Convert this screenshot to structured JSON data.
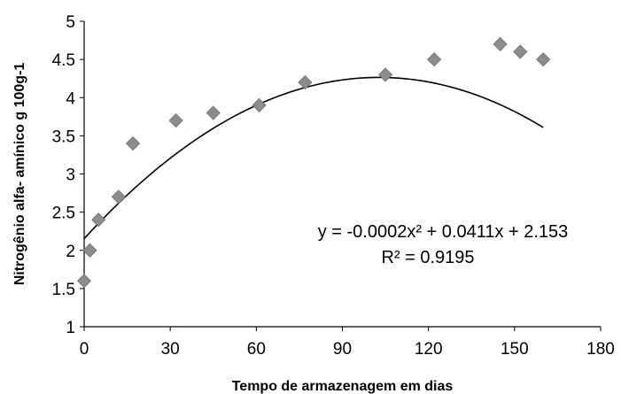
{
  "chart_data": {
    "type": "scatter",
    "title": "",
    "xlabel": "Tempo de armazenagem em dias",
    "ylabel": "Nitrogênio alfa- amínico g 100g-1",
    "xlim": [
      0,
      180
    ],
    "ylim": [
      1,
      5
    ],
    "xticks": [
      0,
      30,
      60,
      90,
      120,
      150,
      180
    ],
    "yticks": [
      1,
      1.5,
      2,
      2.5,
      3,
      3.5,
      4,
      4.5,
      5
    ],
    "xtick_labels": [
      "0",
      "30",
      "60",
      "90",
      "120",
      "150",
      "180"
    ],
    "ytick_labels": [
      "1",
      "1.5",
      "2",
      "2.5",
      "3",
      "3.5",
      "4",
      "4.5",
      "5"
    ],
    "grid": false,
    "legend": "none",
    "marker": "diamond",
    "marker_color": "#8c8c8c",
    "line_color": "#000000",
    "series": [
      {
        "x": [
          0,
          2,
          5,
          12,
          17,
          32,
          45,
          61,
          77,
          105,
          122,
          145,
          152,
          160
        ],
        "y": [
          1.6,
          2.0,
          2.4,
          2.7,
          3.4,
          3.7,
          3.8,
          3.9,
          4.2,
          4.3,
          4.5,
          4.7,
          4.6,
          4.5
        ]
      }
    ],
    "trendline": {
      "type": "polynomial",
      "order": 2,
      "coefficients": [
        -0.0002,
        0.0411,
        2.153
      ],
      "x_range": [
        0,
        160
      ]
    },
    "annotations": [
      "y = -0.0002x² + 0.0411x + 2.153",
      "R² = 0.9195"
    ]
  }
}
